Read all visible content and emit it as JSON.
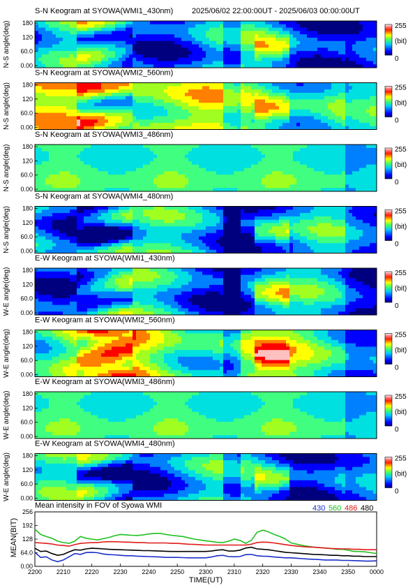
{
  "header": {
    "time_range": "2025/06/02 22:00:00UT - 2025/06/03 00:00:00UT"
  },
  "colorbar": {
    "max_label": "255",
    "unit_label": "(bit)",
    "min_label": "0"
  },
  "keograms": [
    {
      "title": "S-N Keogram at SYOWA(WMI1_430nm)",
      "ylabel": "N-S angle(deg)",
      "ticks": [
        "180",
        "120",
        "60.0",
        "0.00"
      ]
    },
    {
      "title": "S-N Keogram at SYOWA(WMI2_560nm)",
      "ylabel": "N-S angle(deg)",
      "ticks": [
        "180",
        "120",
        "60.0",
        "0.00"
      ]
    },
    {
      "title": "S-N Keogram at SYOWA(WMI3_486nm)",
      "ylabel": "N-S angle(deg)",
      "ticks": [
        "180",
        "120",
        "60.0",
        "0.00"
      ]
    },
    {
      "title": "S-N Keogram at SYOWA(WMI4_480nm)",
      "ylabel": "N-S angle(deg)",
      "ticks": [
        "180",
        "120",
        "60.0",
        "0.00"
      ]
    },
    {
      "title": "E-W Keogram at SYOWA(WMI1_430nm)",
      "ylabel": "W-E angle(deg)",
      "ticks": [
        "180",
        "120",
        "60.0",
        "0.00"
      ]
    },
    {
      "title": "E-W Keogram at SYOWA(WMI2_560nm)",
      "ylabel": "W-E angle(deg)",
      "ticks": [
        "180",
        "120",
        "60.0",
        "0.00"
      ]
    },
    {
      "title": "E-W Keogram at SYOWA(WMI3_486nm)",
      "ylabel": "W-E angle(deg)",
      "ticks": [
        "180",
        "120",
        "60.0",
        "0.00"
      ]
    },
    {
      "title": "E-W Keogram at SYOWA(WMI4_480nm)",
      "ylabel": "W-E angle(deg)",
      "ticks": [
        "180",
        "120",
        "60.0",
        "0.00"
      ]
    }
  ],
  "chart_data": {
    "type": "line",
    "title": "Mean intensity in FOV of Syowa WMI",
    "xlabel": "TIME(UT)",
    "ylabel": "MEAN(BIT)",
    "x_ticks": [
      "2200",
      "2210",
      "2220",
      "2230",
      "2240",
      "2250",
      "2300",
      "2310",
      "2320",
      "2330",
      "2340",
      "2350",
      "0000"
    ],
    "y_ticks": [
      "256",
      "192",
      "128",
      "64.0",
      "0.00"
    ],
    "xlim_minutes": [
      0,
      120
    ],
    "ylim": [
      0,
      256
    ],
    "x": [
      0,
      2,
      4,
      6,
      8,
      10,
      12,
      14,
      16,
      18,
      20,
      22,
      24,
      26,
      28,
      30,
      32,
      34,
      36,
      38,
      40,
      42,
      44,
      46,
      48,
      50,
      52,
      54,
      56,
      58,
      60,
      62,
      64,
      66,
      68,
      70,
      72,
      74,
      76,
      78,
      80,
      82,
      84,
      86,
      88,
      90,
      92,
      94,
      96,
      98,
      100,
      102,
      104,
      106,
      108,
      110,
      112,
      114,
      116,
      118,
      120
    ],
    "series": [
      {
        "name": "430",
        "color": "#1a2fc8",
        "values": [
          66,
          42,
          45,
          30,
          22,
          30,
          45,
          60,
          56,
          65,
          66,
          64,
          58,
          55,
          54,
          52,
          50,
          50,
          48,
          47,
          46,
          45,
          44,
          42,
          42,
          42,
          41,
          40,
          40,
          40,
          40,
          44,
          50,
          52,
          46,
          45,
          46,
          55,
          56,
          50,
          48,
          47,
          44,
          42,
          40,
          40,
          38,
          36,
          34,
          33,
          32,
          30,
          30,
          30,
          28,
          28,
          27,
          26,
          25,
          25,
          26
        ]
      },
      {
        "name": "560",
        "color": "#1ec01e",
        "values": [
          175,
          150,
          140,
          132,
          118,
          112,
          108,
          118,
          140,
          132,
          128,
          124,
          130,
          136,
          144,
          150,
          148,
          146,
          145,
          148,
          152,
          155,
          155,
          150,
          146,
          143,
          140,
          134,
          128,
          124,
          120,
          117,
          113,
          112,
          118,
          128,
          122,
          108,
          122,
          160,
          170,
          162,
          150,
          140,
          128,
          110,
          104,
          98,
          94,
          90,
          88,
          86,
          84,
          80,
          80,
          76,
          70,
          70,
          68,
          64,
          60
        ]
      },
      {
        "name": "486",
        "color": "#e01818",
        "values": [
          112,
          110,
          108,
          105,
          100,
          98,
          95,
          102,
          108,
          110,
          112,
          112,
          115,
          116,
          116,
          115,
          114,
          113,
          112,
          112,
          110,
          110,
          110,
          110,
          108,
          108,
          106,
          104,
          103,
          102,
          100,
          100,
          100,
          100,
          100,
          100,
          100,
          100,
          104,
          112,
          114,
          113,
          110,
          106,
          102,
          98,
          95,
          93,
          91,
          90,
          88,
          86,
          84,
          83,
          82,
          82,
          80,
          80,
          78,
          78,
          78
        ]
      },
      {
        "name": "480",
        "color": "#000000",
        "values": [
          85,
          70,
          72,
          60,
          52,
          56,
          68,
          78,
          76,
          82,
          85,
          84,
          82,
          80,
          79,
          78,
          77,
          76,
          75,
          74,
          74,
          73,
          72,
          71,
          70,
          70,
          70,
          70,
          70,
          70,
          70,
          72,
          76,
          78,
          72,
          72,
          76,
          86,
          90,
          82,
          80,
          78,
          74,
          70,
          66,
          64,
          62,
          60,
          58,
          56,
          55,
          54,
          52,
          52,
          50,
          50,
          48,
          48,
          46,
          46,
          46
        ]
      }
    ]
  }
}
